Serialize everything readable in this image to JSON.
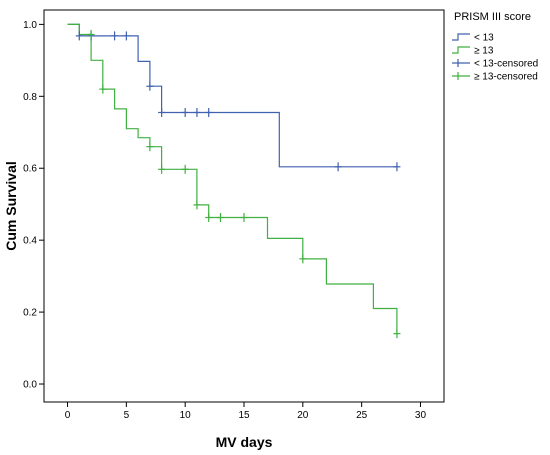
{
  "chart_data": {
    "type": "line",
    "subtype": "kaplan-meier step survival curve",
    "xlabel": "MV days",
    "ylabel": "Cum Survival",
    "xlim": [
      -2,
      32
    ],
    "ylim": [
      -0.05,
      1.04
    ],
    "xticks": [
      0,
      5,
      10,
      15,
      20,
      25,
      30
    ],
    "yticks": [
      0.0,
      0.2,
      0.4,
      0.6,
      0.8,
      1.0
    ],
    "ytick_labels": [
      "0.0",
      "0.2",
      "0.4",
      "0.6",
      "0.8",
      "1.0"
    ],
    "grid": false,
    "legend": {
      "title": "PRISM III score",
      "position": "top-right outside plot",
      "entries": [
        "< 13",
        "≥ 13",
        "< 13-censored",
        "≥ 13-censored"
      ]
    },
    "series": [
      {
        "name": "< 13",
        "color": "#4060b0",
        "steps": [
          [
            0,
            1.0
          ],
          [
            1,
            0.968
          ],
          [
            6,
            0.897
          ],
          [
            7,
            0.828
          ],
          [
            8,
            0.755
          ],
          [
            18,
            0.604
          ],
          [
            28,
            0.604
          ]
        ],
        "censored_name": "< 13-censored",
        "censored": [
          [
            1,
            0.968
          ],
          [
            2,
            0.968
          ],
          [
            4,
            0.968
          ],
          [
            5,
            0.968
          ],
          [
            7,
            0.828
          ],
          [
            8,
            0.755
          ],
          [
            10,
            0.755
          ],
          [
            11,
            0.755
          ],
          [
            12,
            0.755
          ],
          [
            23,
            0.604
          ],
          [
            28,
            0.604
          ]
        ]
      },
      {
        "name": "≥ 13",
        "color": "#40b040",
        "steps": [
          [
            0,
            1.0
          ],
          [
            1,
            0.972
          ],
          [
            2,
            0.9
          ],
          [
            3,
            0.82
          ],
          [
            4,
            0.765
          ],
          [
            5,
            0.71
          ],
          [
            6,
            0.685
          ],
          [
            7,
            0.66
          ],
          [
            8,
            0.597
          ],
          [
            11,
            0.498
          ],
          [
            12,
            0.463
          ],
          [
            17,
            0.405
          ],
          [
            20,
            0.348
          ],
          [
            22,
            0.278
          ],
          [
            26,
            0.21
          ],
          [
            28,
            0.14
          ]
        ],
        "censored_name": "≥ 13-censored",
        "censored": [
          [
            2,
            0.972
          ],
          [
            3,
            0.82
          ],
          [
            7,
            0.66
          ],
          [
            8,
            0.597
          ],
          [
            10,
            0.597
          ],
          [
            11,
            0.498
          ],
          [
            12,
            0.463
          ],
          [
            13,
            0.463
          ],
          [
            15,
            0.463
          ],
          [
            20,
            0.348
          ],
          [
            28,
            0.14
          ]
        ]
      }
    ]
  }
}
